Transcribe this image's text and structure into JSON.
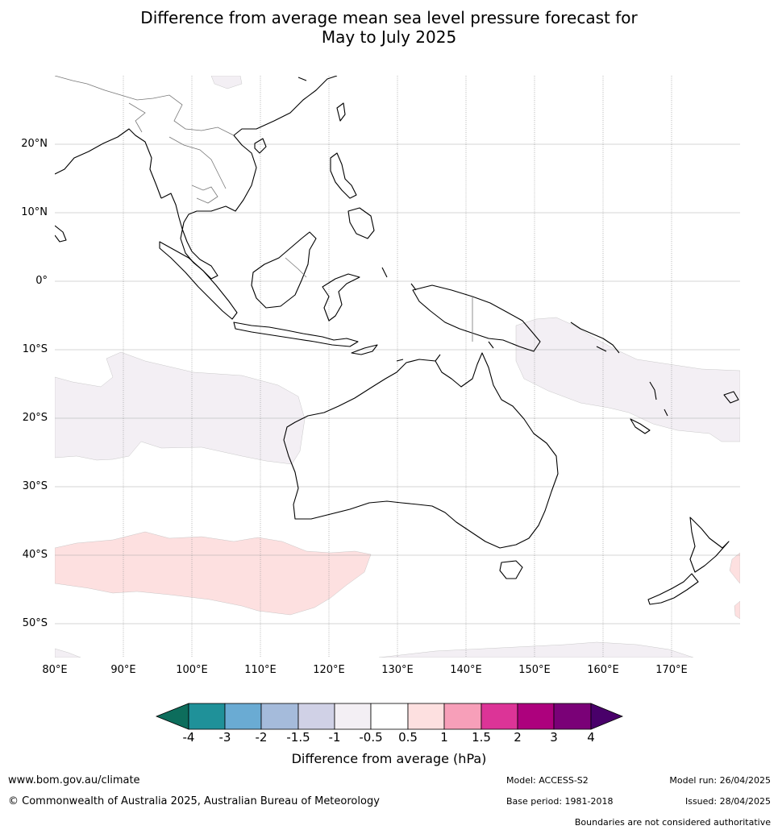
{
  "title": {
    "line1": "Difference from average mean sea level pressure forecast for",
    "line2": "May to July 2025"
  },
  "map": {
    "lon_range": [
      80,
      180
    ],
    "lat_range": [
      -55,
      30
    ],
    "lat_labels": [
      "20°N",
      "10°N",
      "0°",
      "10°S",
      "20°S",
      "30°S",
      "40°S",
      "50°S"
    ],
    "lon_labels": [
      "80°E",
      "90°E",
      "100°E",
      "110°E",
      "120°E",
      "130°E",
      "140°E",
      "150°E",
      "160°E",
      "170°E"
    ],
    "anomaly_regions": [
      {
        "name": "indian-ocean-negative",
        "category": "-1 to -0.5",
        "color": "#f3eff4"
      },
      {
        "name": "coral-sea-negative",
        "category": "-1 to -0.5",
        "color": "#f3eff4"
      },
      {
        "name": "southern-indian-positive",
        "category": "0.5 to 1",
        "color": "#fde0e0"
      },
      {
        "name": "tasman-positive",
        "category": "0.5 to 1",
        "color": "#fde0e0"
      },
      {
        "name": "southern-ocean-negative",
        "category": "-1 to -0.5",
        "color": "#f3eff4"
      }
    ]
  },
  "colorbar": {
    "ticks": [
      "-4",
      "-3",
      "-2",
      "-1.5",
      "-1",
      "-0.5",
      "0.5",
      "1",
      "1.5",
      "2",
      "3",
      "4"
    ],
    "colors": [
      "#0d6d5c",
      "#1f9199",
      "#6aabd3",
      "#a5bbdb",
      "#d0d1e6",
      "#f3eff4",
      "#ffffff",
      "#fde0e0",
      "#f79fb9",
      "#dc3497",
      "#ad017d",
      "#7a0177",
      "#49006a"
    ],
    "label": "Difference from average (hPa)"
  },
  "footer": {
    "website": "www.bom.gov.au/climate",
    "copyright": "© Commonwealth of Australia 2025, Australian Bureau of Meteorology",
    "model": "Model: ACCESS-S2",
    "base_period": "Base period: 1981-2018",
    "model_run": "Model run: 26/04/2025",
    "issued": "Issued: 28/04/2025",
    "disclaimer": "Boundaries are not considered authoritative"
  }
}
